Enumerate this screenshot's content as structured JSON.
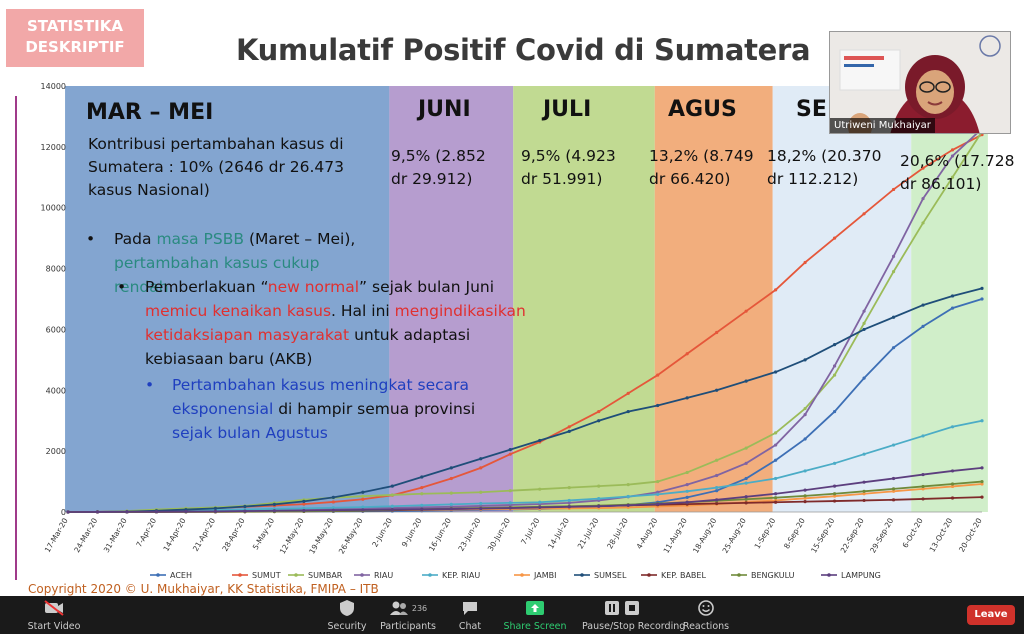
{
  "slide": {
    "tag": "STATISTIKA DESKRIPTIF",
    "title": "Kumulatif Positif Covid di Sumatera",
    "copyright": "Copyright 2020 © U. Mukhaiyar, KK Statistika, FMIPA – ITB",
    "bands": [
      {
        "label": "MAR – MEI",
        "color": "#6d95c8",
        "text": "Kontribusi pertambahan kasus di Sumatera : 10% (2646 dr 26.473 kasus Nasional)"
      },
      {
        "label": "JUNI",
        "color": "#a98cc7",
        "text": "9,5% (2.852 dr 29.912)"
      },
      {
        "label": "JULI",
        "color": "#b6d37f",
        "text": "9,5% (4.923 dr 51.991)"
      },
      {
        "label": "AGUS",
        "color": "#f0a066",
        "text": "13,2% (8.749 dr 66.420)"
      },
      {
        "label": "SE",
        "color": "#dbe7f4",
        "text": "18,2% (20.370 dr 112.212)"
      },
      {
        "label": "",
        "color": "#c8ebc0",
        "text": "20,6% (17.728 dr 86.101)"
      }
    ],
    "bullets": {
      "b1_pre": "Pada",
      "b1_h1": "masa PSBB",
      "b1_mid": "(Maret – Mei),",
      "b1_h2": "pertambahan kasus cukup rendah",
      "b1_end": ".",
      "b2_pre": "Pemberlakuan “",
      "b2_h1": "new normal",
      "b2_mid": "” sejak bulan Juni",
      "b2_h2": "memicu kenaikan kasus",
      "b2_mid2": ". Hal ini",
      "b2_h3": "mengindikasikan",
      "b2_h4": "ketidaksiapan masyarakat",
      "b2_end": "untuk adaptasi kebiasaan baru (AKB)",
      "b3_h1": "Pertambahan kasus meningkat secara eksponensial",
      "b3_mid": "di hampir semua provinsi",
      "b3_h2": "sejak bulan Agustus"
    }
  },
  "chart_data": {
    "type": "line",
    "ylim": [
      0,
      14000
    ],
    "yticks": [
      "0",
      "2000",
      "4000",
      "6000",
      "8000",
      "10000",
      "12000",
      "14000"
    ],
    "categories": [
      "17-Mar-20",
      "24-Mar-20",
      "31-Mar-20",
      "7-Apr-20",
      "14-Apr-20",
      "21-Apr-20",
      "28-Apr-20",
      "5-May-20",
      "12-May-20",
      "19-May-20",
      "26-May-20",
      "2-Jun-20",
      "9-Jun-20",
      "16-Jun-20",
      "23-Jun-20",
      "30-Jun-20",
      "7-Jul-20",
      "14-Jul-20",
      "21-Jul-20",
      "28-Jul-20",
      "4-Aug-20",
      "11-Aug-20",
      "18-Aug-20",
      "25-Aug-20",
      "1-Sep-20",
      "8-Sep-20",
      "15-Sep-20",
      "22-Sep-20",
      "29-Sep-20",
      "6-Oct-20",
      "13-Oct-20",
      "20-Oct-20"
    ],
    "series": [
      {
        "name": "ACEH",
        "color": "#3d6fb5",
        "values": [
          0,
          2,
          5,
          8,
          10,
          12,
          15,
          18,
          20,
          22,
          25,
          30,
          40,
          55,
          70,
          85,
          100,
          130,
          170,
          230,
          320,
          480,
          700,
          1100,
          1700,
          2400,
          3300,
          4400,
          5400,
          6100,
          6700,
          7000
        ]
      },
      {
        "name": "SUMUT",
        "color": "#e5573a",
        "values": [
          0,
          5,
          20,
          60,
          100,
          130,
          170,
          210,
          260,
          330,
          420,
          550,
          800,
          1100,
          1450,
          1900,
          2300,
          2800,
          3300,
          3900,
          4500,
          5200,
          5900,
          6600,
          7300,
          8200,
          9000,
          9800,
          10600,
          11300,
          11900,
          12400
        ]
      },
      {
        "name": "SUMBAR",
        "color": "#9bbb59",
        "values": [
          0,
          5,
          30,
          80,
          120,
          150,
          200,
          300,
          400,
          470,
          520,
          560,
          600,
          620,
          650,
          700,
          750,
          800,
          850,
          900,
          1000,
          1300,
          1700,
          2100,
          2600,
          3400,
          4500,
          6200,
          7900,
          9500,
          11000,
          12500
        ]
      },
      {
        "name": "RIAU",
        "color": "#8064a2",
        "values": [
          0,
          2,
          10,
          25,
          40,
          50,
          70,
          90,
          100,
          110,
          120,
          130,
          150,
          170,
          200,
          230,
          260,
          300,
          380,
          500,
          650,
          900,
          1200,
          1600,
          2200,
          3200,
          4800,
          6600,
          8400,
          10300,
          11700,
          12600
        ]
      },
      {
        "name": "KEP. RIAU",
        "color": "#4bacc6",
        "values": [
          0,
          3,
          8,
          15,
          40,
          60,
          80,
          100,
          120,
          140,
          160,
          190,
          220,
          250,
          280,
          300,
          320,
          380,
          440,
          510,
          580,
          680,
          800,
          950,
          1100,
          1350,
          1600,
          1900,
          2200,
          2500,
          2800,
          3000
        ]
      },
      {
        "name": "JAMBI",
        "color": "#f79646",
        "values": [
          0,
          0,
          2,
          5,
          8,
          10,
          15,
          20,
          30,
          40,
          50,
          60,
          70,
          80,
          90,
          100,
          110,
          120,
          130,
          150,
          180,
          210,
          260,
          320,
          380,
          450,
          520,
          600,
          680,
          760,
          840,
          920
        ]
      },
      {
        "name": "SUMSEL",
        "color": "#1f4e79",
        "values": [
          0,
          3,
          10,
          40,
          80,
          120,
          180,
          250,
          350,
          480,
          650,
          850,
          1150,
          1450,
          1750,
          2050,
          2350,
          2650,
          3000,
          3300,
          3500,
          3750,
          4000,
          4300,
          4600,
          5000,
          5500,
          6000,
          6400,
          6800,
          7100,
          7350
        ]
      },
      {
        "name": "KEP. BABEL",
        "color": "#7f2a2a",
        "values": [
          0,
          0,
          1,
          2,
          3,
          5,
          8,
          12,
          20,
          30,
          40,
          60,
          80,
          100,
          120,
          140,
          160,
          180,
          200,
          220,
          240,
          260,
          280,
          300,
          320,
          340,
          360,
          380,
          400,
          430,
          460,
          490
        ]
      },
      {
        "name": "BENGKULU",
        "color": "#6f8a3a",
        "values": [
          0,
          0,
          1,
          3,
          5,
          8,
          12,
          18,
          25,
          35,
          50,
          70,
          90,
          110,
          130,
          150,
          170,
          190,
          210,
          240,
          280,
          320,
          370,
          420,
          470,
          530,
          600,
          680,
          760,
          840,
          920,
          1000
        ]
      },
      {
        "name": "LAMPUNG",
        "color": "#5c3e7e",
        "values": [
          0,
          2,
          5,
          10,
          15,
          20,
          30,
          40,
          50,
          60,
          70,
          80,
          90,
          100,
          110,
          130,
          150,
          170,
          190,
          220,
          260,
          320,
          400,
          500,
          600,
          720,
          850,
          980,
          1100,
          1230,
          1350,
          1450
        ]
      }
    ]
  },
  "webcam": {
    "name": "Utriweni Mukhaiyar"
  },
  "toolbar": {
    "start_video": "Start Video",
    "security": "Security",
    "participants": "Participants",
    "participants_count": "236",
    "chat": "Chat",
    "share_screen": "Share Screen",
    "pause_recording": "Pause/Stop Recording",
    "reactions": "Reactions",
    "leave": "Leave",
    "accent": "#2ecc71"
  }
}
